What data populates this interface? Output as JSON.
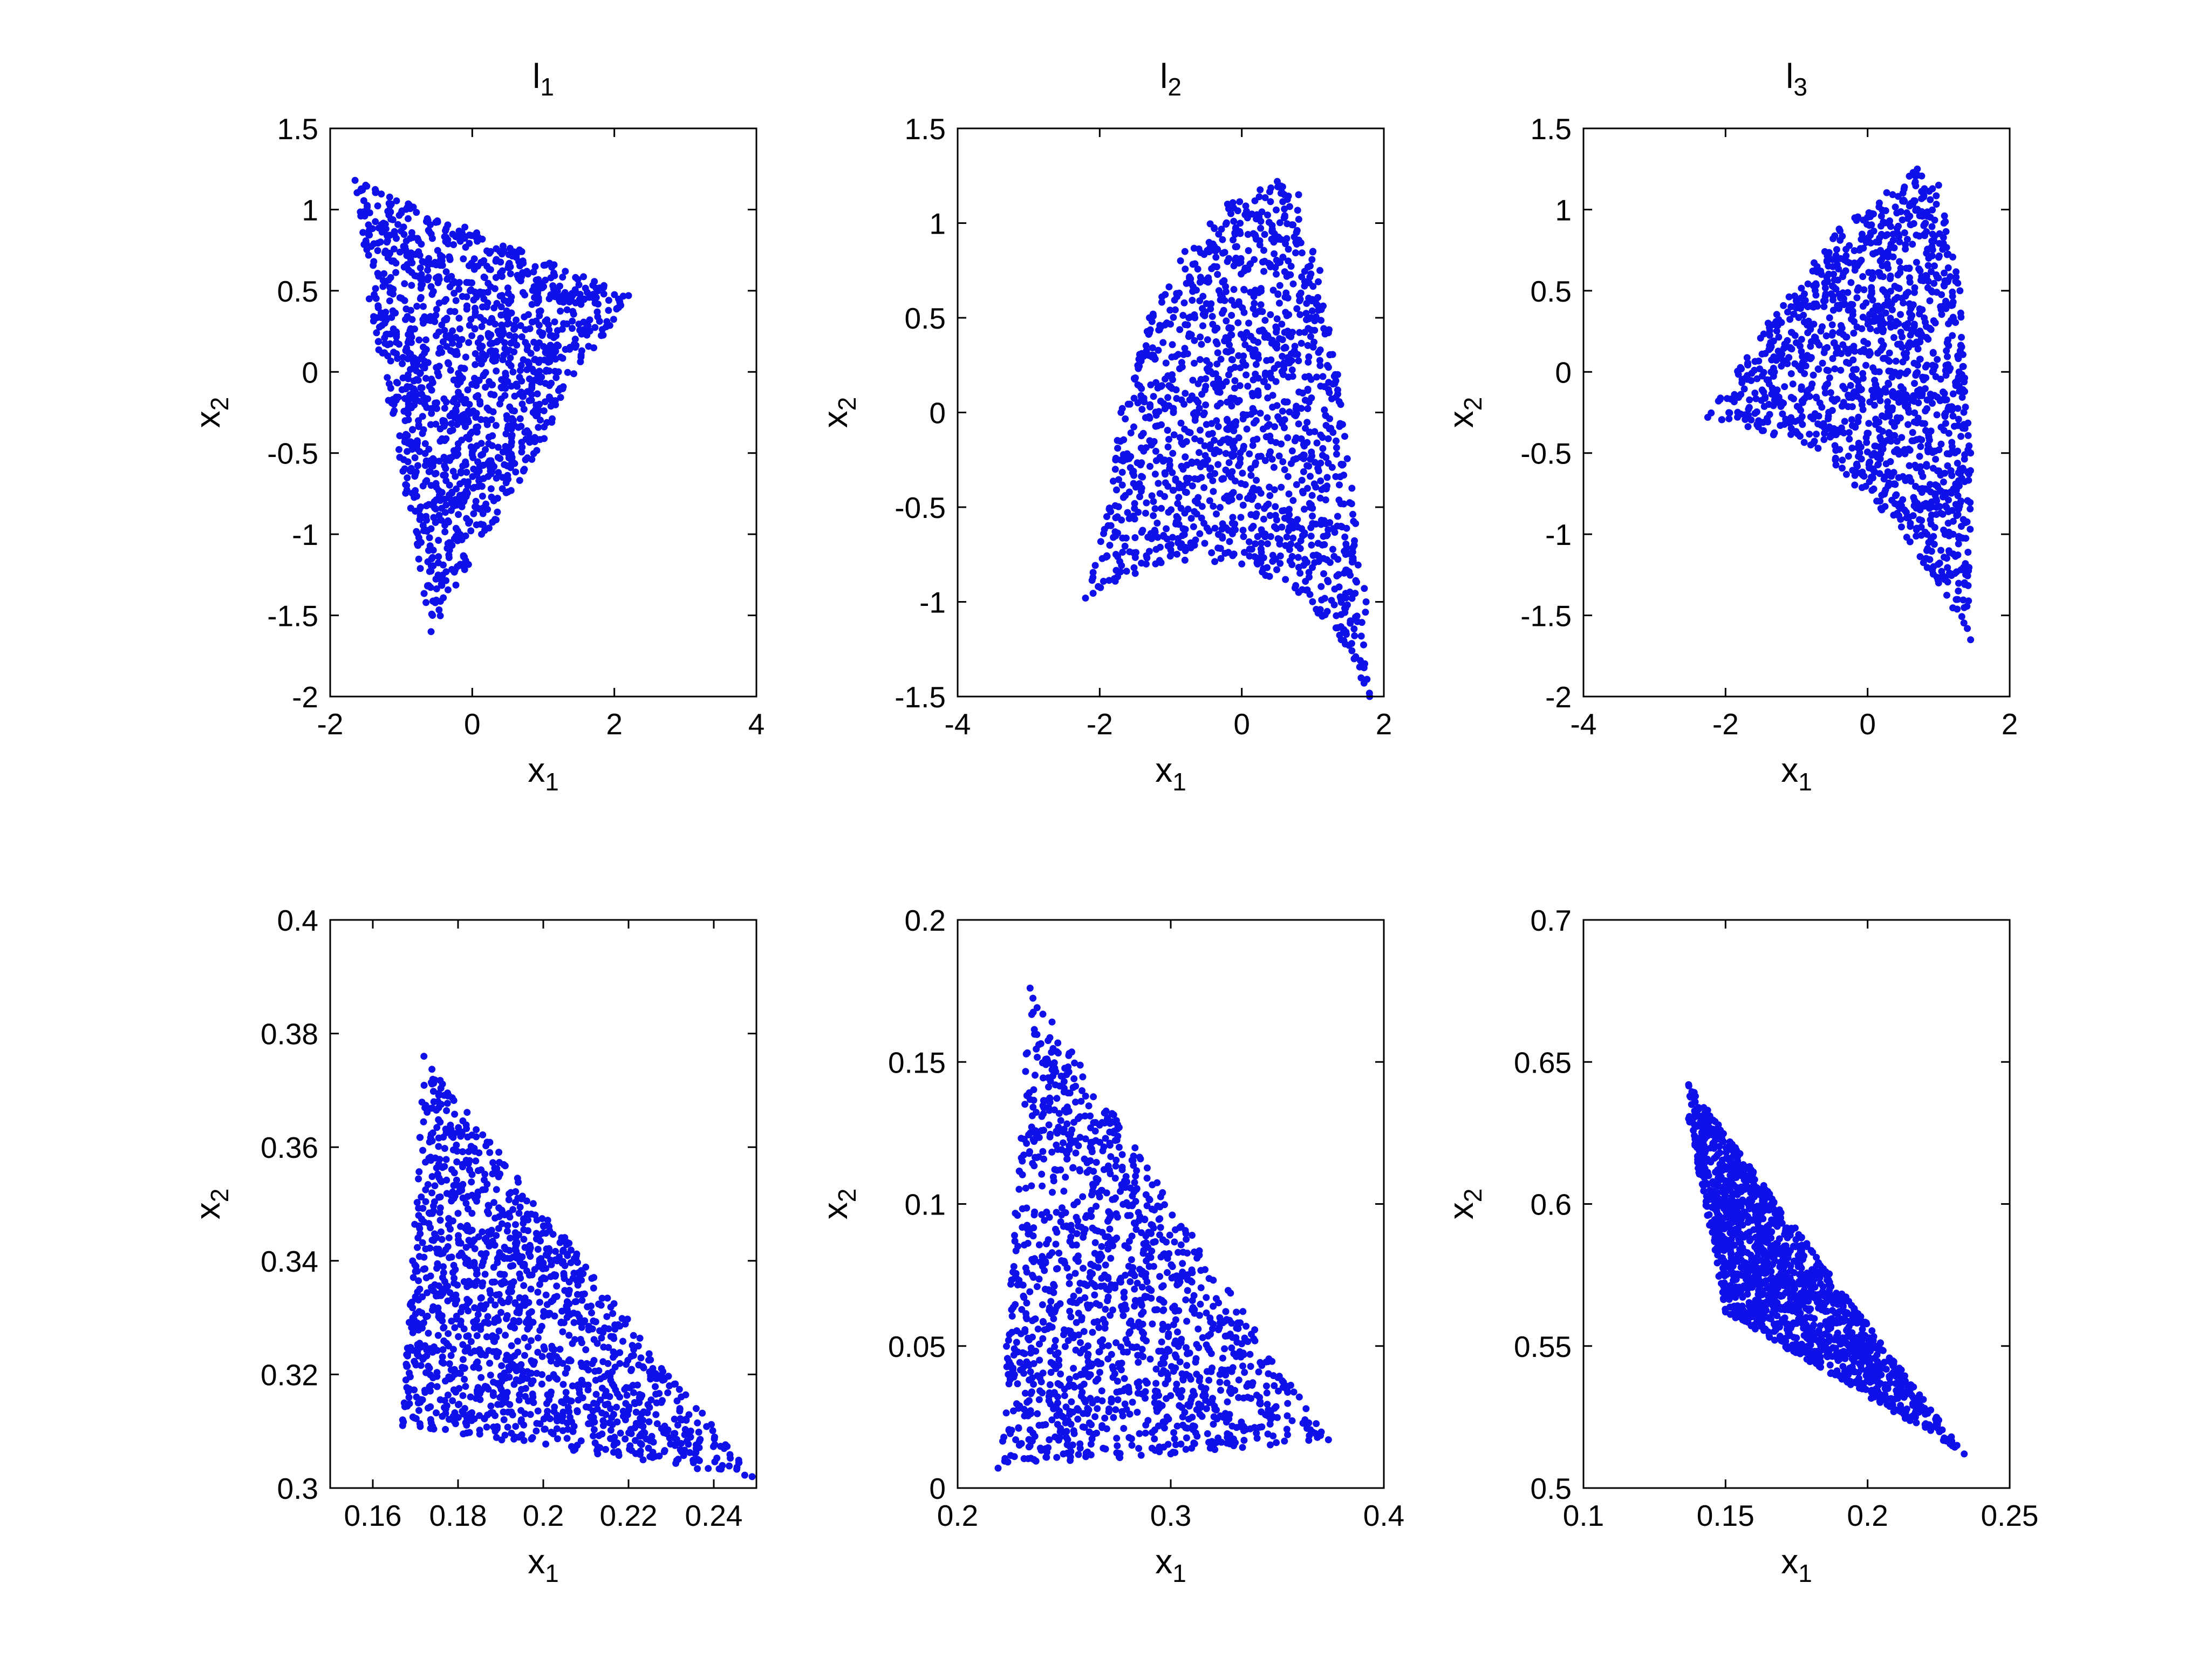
{
  "figure": {
    "background": "#ffffff",
    "marker_color": "#1010e8",
    "axes_color": "#000000"
  },
  "chart_data": [
    {
      "type": "scatter",
      "title": "l",
      "title_sub": "1",
      "xlabel": "x",
      "xlabel_sub": "1",
      "ylabel": "x",
      "ylabel_sub": "2",
      "xlim": [
        -2,
        4
      ],
      "ylim": [
        -2,
        1.5
      ],
      "xticks": [
        -2,
        0,
        2,
        4
      ],
      "yticks": [
        -2,
        -1.5,
        -1,
        -0.5,
        0,
        0.5,
        1,
        1.5
      ],
      "xtick_labels": [
        "-2",
        "0",
        "2",
        "4"
      ],
      "ytick_labels": [
        "-2",
        "-1.5",
        "-1",
        "-0.5",
        "0",
        "0.5",
        "1",
        "1.5"
      ],
      "grid": false,
      "legend": "none",
      "region": [
        [
          -1.65,
          1.18
        ],
        [
          -1.5,
          1.15
        ],
        [
          2.2,
          0.47
        ],
        [
          -0.58,
          -1.6
        ],
        [
          -1.45,
          0.45
        ]
      ],
      "n_points": 1400,
      "seed": 11
    },
    {
      "type": "scatter",
      "title": "l",
      "title_sub": "2",
      "xlabel": "x",
      "xlabel_sub": "1",
      "ylabel": "x",
      "ylabel_sub": "2",
      "xlim": [
        -4,
        2
      ],
      "ylim": [
        -1.5,
        1.5
      ],
      "xticks": [
        -4,
        -2,
        0,
        2
      ],
      "yticks": [
        -1.5,
        -1,
        -0.5,
        0,
        0.5,
        1,
        1.5
      ],
      "xtick_labels": [
        "-4",
        "-2",
        "0",
        "2"
      ],
      "ytick_labels": [
        "-1.5",
        "-1",
        "-0.5",
        "0",
        "0.5",
        "1",
        "1.5"
      ],
      "grid": false,
      "legend": "none",
      "region": [
        [
          -2.2,
          -0.98
        ],
        [
          -1.9,
          -0.55
        ],
        [
          -1.7,
          0.0
        ],
        [
          -1.3,
          0.5
        ],
        [
          -0.8,
          0.85
        ],
        [
          -0.2,
          1.1
        ],
        [
          0.5,
          1.22
        ],
        [
          0.8,
          1.15
        ],
        [
          1.1,
          0.75
        ],
        [
          1.35,
          0.2
        ],
        [
          1.55,
          -0.4
        ],
        [
          1.75,
          -1.0
        ],
        [
          1.8,
          -1.5
        ],
        [
          1.4,
          -1.2
        ],
        [
          0.8,
          -0.95
        ],
        [
          0.0,
          -0.8
        ],
        [
          -0.8,
          -0.78
        ],
        [
          -1.5,
          -0.85
        ]
      ],
      "n_points": 1400,
      "seed": 23
    },
    {
      "type": "scatter",
      "title": "l",
      "title_sub": "3",
      "xlabel": "x",
      "xlabel_sub": "1",
      "ylabel": "x",
      "ylabel_sub": "2",
      "xlim": [
        -4,
        2
      ],
      "ylim": [
        -2,
        1.5
      ],
      "xticks": [
        -4,
        -2,
        0,
        2
      ],
      "yticks": [
        -2,
        -1.5,
        -1,
        -0.5,
        0,
        0.5,
        1,
        1.5
      ],
      "xtick_labels": [
        "-4",
        "-2",
        "0",
        "2"
      ],
      "ytick_labels": [
        "-2",
        "-1.5",
        "-1",
        "-0.5",
        "0",
        "0.5",
        "1",
        "1.5"
      ],
      "grid": false,
      "legend": "none",
      "region": [
        [
          -2.25,
          -0.28
        ],
        [
          -1.4,
          0.3
        ],
        [
          -0.4,
          0.88
        ],
        [
          0.7,
          1.25
        ],
        [
          1.0,
          1.15
        ],
        [
          1.3,
          0.5
        ],
        [
          1.45,
          -0.5
        ],
        [
          1.45,
          -1.65
        ],
        [
          1.0,
          -1.3
        ],
        [
          0.2,
          -0.85
        ],
        [
          -0.8,
          -0.45
        ]
      ],
      "n_points": 1400,
      "seed": 37
    },
    {
      "type": "scatter",
      "title": "",
      "xlabel": "x",
      "xlabel_sub": "1",
      "ylabel": "x",
      "ylabel_sub": "2",
      "xlim": [
        0.15,
        0.25
      ],
      "ylim": [
        0.3,
        0.4
      ],
      "xticks": [
        0.16,
        0.18,
        0.2,
        0.22,
        0.24
      ],
      "yticks": [
        0.3,
        0.32,
        0.34,
        0.36,
        0.38,
        0.4
      ],
      "xtick_labels": [
        "0.16",
        "0.18",
        "0.2",
        "0.22",
        "0.24"
      ],
      "ytick_labels": [
        "0.3",
        "0.32",
        "0.34",
        "0.36",
        "0.38",
        "0.4"
      ],
      "grid": false,
      "legend": "none",
      "region": [
        [
          0.167,
          0.312
        ],
        [
          0.172,
          0.376
        ],
        [
          0.249,
          0.302
        ],
        [
          0.167,
          0.311
        ]
      ],
      "n_points": 1400,
      "seed": 41
    },
    {
      "type": "scatter",
      "title": "",
      "xlabel": "x",
      "xlabel_sub": "1",
      "ylabel": "x",
      "ylabel_sub": "2",
      "xlim": [
        0.2,
        0.4
      ],
      "ylim": [
        0,
        0.2
      ],
      "xticks": [
        0.2,
        0.3,
        0.4
      ],
      "yticks": [
        0,
        0.05,
        0.1,
        0.15,
        0.2
      ],
      "xtick_labels": [
        "0.2",
        "0.3",
        "0.4"
      ],
      "ytick_labels": [
        "0",
        "0.05",
        "0.1",
        "0.15",
        "0.2"
      ],
      "grid": false,
      "legend": "none",
      "region": [
        [
          0.219,
          0.007
        ],
        [
          0.234,
          0.176
        ],
        [
          0.374,
          0.017
        ],
        [
          0.3,
          0.012
        ]
      ],
      "n_points": 1400,
      "seed": 53
    },
    {
      "type": "scatter",
      "title": "",
      "xlabel": "x",
      "xlabel_sub": "1",
      "ylabel": "x",
      "ylabel_sub": "2",
      "xlim": [
        0.1,
        0.25
      ],
      "ylim": [
        0.5,
        0.7
      ],
      "xticks": [
        0.1,
        0.15,
        0.2,
        0.25
      ],
      "yticks": [
        0.5,
        0.55,
        0.6,
        0.65,
        0.7
      ],
      "xtick_labels": [
        "0.1",
        "0.15",
        "0.2",
        "0.25"
      ],
      "ytick_labels": [
        "0.5",
        "0.55",
        "0.6",
        "0.65",
        "0.7"
      ],
      "grid": false,
      "legend": "none",
      "region": [
        [
          0.137,
          0.642
        ],
        [
          0.234,
          0.512
        ],
        [
          0.15,
          0.562
        ],
        [
          0.137,
          0.63
        ]
      ],
      "n_points": 1600,
      "seed": 67
    }
  ]
}
